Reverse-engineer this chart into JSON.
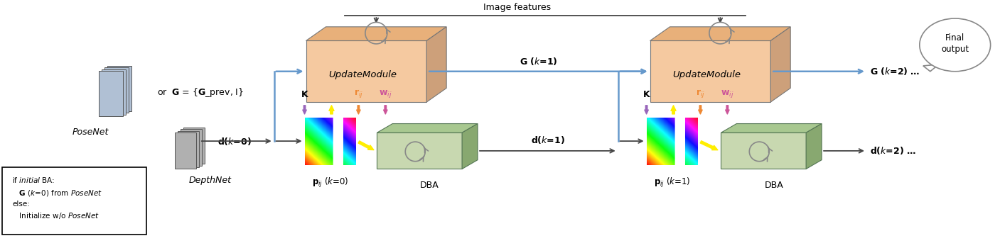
{
  "bg_color": "#ffffff",
  "image_features_text": "Image features",
  "final_output_text": "Final\noutput",
  "posenet_label": "PoseNet",
  "depthnet_label": "DepthNet",
  "update_module_label": "UpdateModule",
  "dba_label": "DBA",
  "colors": {
    "um_face": "#f5c9a0",
    "um_top": "#e8b07a",
    "um_side": "#cda07a",
    "dba_face": "#c8d8b0",
    "dba_top": "#a8c890",
    "dba_side": "#88a870",
    "arrow_blue": "#5599cc",
    "arrow_yellow": "#ffee00",
    "arrow_purple": "#9966bb",
    "arrow_orange": "#ee8833",
    "arrow_magenta": "#cc5599",
    "line_dark": "#444444",
    "line_blue": "#6699cc",
    "nn_blue": "#b0c0d4",
    "nn_gray": "#b0b0b0",
    "rotate": "#888888"
  }
}
